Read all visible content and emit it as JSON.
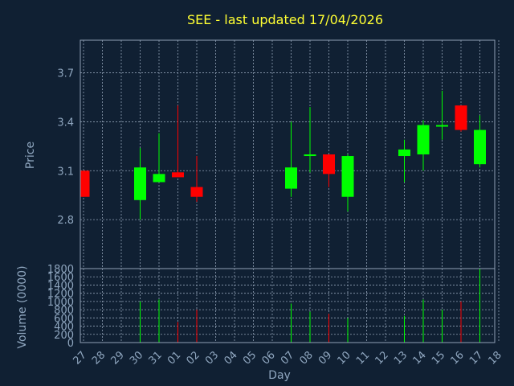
{
  "chart_data": {
    "type": "candlestick",
    "title": "SEE - last updated 17/04/2026",
    "ylabel": "Price",
    "volume_label": "Volume (0000)",
    "xlabel": "Day",
    "x_ticks": [
      "27",
      "28",
      "29",
      "30",
      "31",
      "01",
      "02",
      "03",
      "04",
      "05",
      "06",
      "07",
      "08",
      "09",
      "10",
      "11",
      "12",
      "13",
      "14",
      "15",
      "16",
      "17",
      "18"
    ],
    "y_ticks": [
      "2.8",
      "3.1",
      "3.4",
      "3.7"
    ],
    "ylim": [
      2.5,
      3.9
    ],
    "volume_ticks": [
      "0",
      "200",
      "400",
      "600",
      "800",
      "1000",
      "1200",
      "1400",
      "1600",
      "1800"
    ],
    "volume_ylim": [
      0,
      1800
    ],
    "grid": true,
    "colors": {
      "up": "#00ff00",
      "down": "#ff0000",
      "background": "#102033",
      "title": "#ffff33"
    },
    "candles": [
      {
        "x": 0,
        "open": 3.1,
        "high": 3.1,
        "low": 2.94,
        "close": 2.94,
        "volume": 0
      },
      {
        "x": 3,
        "open": 2.92,
        "high": 3.24,
        "low": 2.8,
        "close": 3.12,
        "volume": 1000
      },
      {
        "x": 4,
        "open": 3.03,
        "high": 3.33,
        "low": 3.03,
        "close": 3.08,
        "volume": 1050
      },
      {
        "x": 5,
        "open": 3.09,
        "high": 3.5,
        "low": 3.06,
        "close": 3.06,
        "volume": 500
      },
      {
        "x": 6,
        "open": 3.0,
        "high": 3.19,
        "low": 2.91,
        "close": 2.94,
        "volume": 800
      },
      {
        "x": 11,
        "open": 2.99,
        "high": 3.4,
        "low": 2.94,
        "close": 3.12,
        "volume": 950
      },
      {
        "x": 12,
        "open": 3.19,
        "high": 3.49,
        "low": 3.09,
        "close": 3.2,
        "volume": 750
      },
      {
        "x": 13,
        "open": 3.2,
        "high": 3.2,
        "low": 3.0,
        "close": 3.08,
        "volume": 700
      },
      {
        "x": 14,
        "open": 2.94,
        "high": 3.2,
        "low": 2.85,
        "close": 3.19,
        "volume": 600
      },
      {
        "x": 17,
        "open": 3.19,
        "high": 3.29,
        "low": 3.03,
        "close": 3.23,
        "volume": 650
      },
      {
        "x": 18,
        "open": 3.2,
        "high": 3.41,
        "low": 3.1,
        "close": 3.38,
        "volume": 1050
      },
      {
        "x": 19,
        "open": 3.37,
        "high": 3.59,
        "low": 3.29,
        "close": 3.38,
        "volume": 800
      },
      {
        "x": 20,
        "open": 3.5,
        "high": 3.5,
        "low": 3.34,
        "close": 3.35,
        "volume": 1000
      },
      {
        "x": 21,
        "open": 3.14,
        "high": 3.44,
        "low": 3.12,
        "close": 3.35,
        "volume": 1800
      }
    ]
  }
}
